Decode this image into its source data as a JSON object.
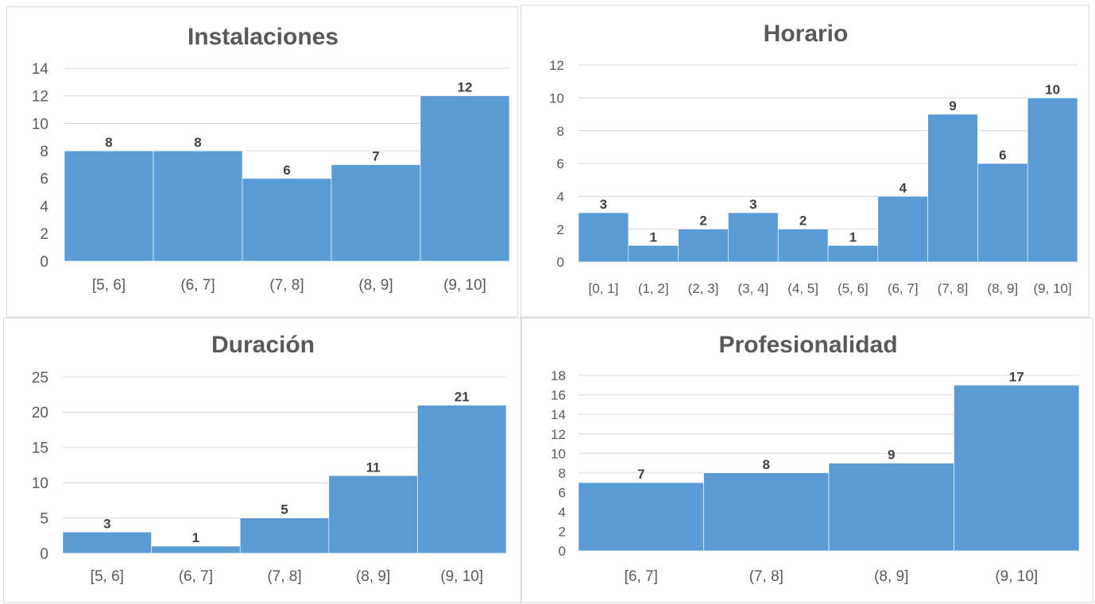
{
  "chart_data": [
    {
      "type": "bar",
      "title": "Instalaciones",
      "categories": [
        "[5, 6]",
        "(6, 7]",
        "(7, 8]",
        "(8, 9]",
        "(9, 10]"
      ],
      "values": [
        8,
        8,
        6,
        7,
        12
      ],
      "ylim": [
        0,
        14
      ],
      "yticks": [
        0,
        2,
        4,
        6,
        8,
        10,
        12,
        14
      ],
      "grid": true,
      "bar_color": "#5b9bd5"
    },
    {
      "type": "bar",
      "title": "Horario",
      "categories": [
        "[0, 1]",
        "(1, 2]",
        "(2, 3]",
        "(3, 4]",
        "(4, 5]",
        "(5, 6]",
        "(6, 7]",
        "(7, 8]",
        "(8, 9]",
        "(9, 10]"
      ],
      "values": [
        3,
        1,
        2,
        3,
        2,
        1,
        4,
        9,
        6,
        10
      ],
      "ylim": [
        0,
        12
      ],
      "yticks": [
        0,
        2,
        4,
        6,
        8,
        10,
        12
      ],
      "grid": true,
      "bar_color": "#5b9bd5"
    },
    {
      "type": "bar",
      "title": "Duración",
      "categories": [
        "[5, 6]",
        "(6, 7]",
        "(7, 8]",
        "(8, 9]",
        "(9, 10]"
      ],
      "values": [
        3,
        1,
        5,
        11,
        21
      ],
      "ylim": [
        0,
        25
      ],
      "yticks": [
        0,
        5,
        10,
        15,
        20,
        25
      ],
      "grid": true,
      "bar_color": "#5b9bd5"
    },
    {
      "type": "bar",
      "title": "Profesionalidad",
      "categories": [
        "[6, 7]",
        "(7, 8]",
        "(8, 9]",
        "(9, 10]"
      ],
      "values": [
        7,
        8,
        9,
        17
      ],
      "ylim": [
        0,
        18
      ],
      "yticks": [
        0,
        2,
        4,
        6,
        8,
        10,
        12,
        14,
        16,
        18
      ],
      "grid": true,
      "bar_color": "#5b9bd5"
    }
  ]
}
